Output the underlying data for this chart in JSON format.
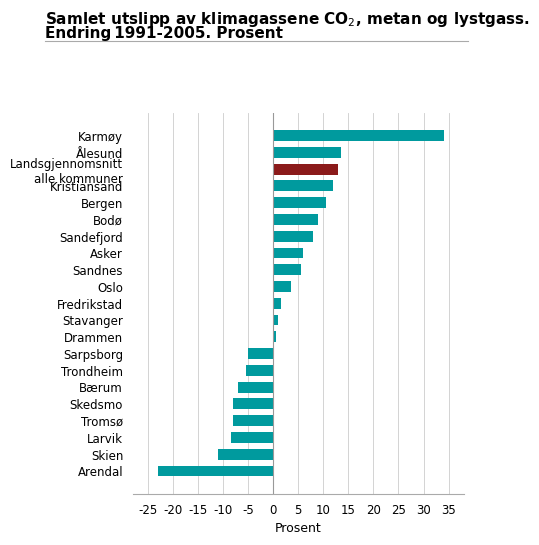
{
  "title_line1": "Samlet utslipp av klimagassene CO$_2$, metan og lystgass.",
  "title_line2": "Endring 1991-2005. Prosent",
  "xlabel": "Prosent",
  "categories": [
    "Karmøy",
    "Ålesund",
    "Landsgjennomsnitt\nalle kommuner",
    "Kristiansand",
    "Bergen",
    "Bodø",
    "Sandefjord",
    "Asker",
    "Sandnes",
    "Oslo",
    "Fredrikstad",
    "Stavanger",
    "Drammen",
    "Sarpsborg",
    "Trondheim",
    "Bærum",
    "Skedsmo",
    "Tromsø",
    "Larvik",
    "Skien",
    "Arendal"
  ],
  "values": [
    34,
    13.5,
    13,
    12,
    10.5,
    9,
    8,
    6,
    5.5,
    3.5,
    1.5,
    1,
    0.5,
    -5,
    -5.5,
    -7,
    -8,
    -8,
    -8.5,
    -11,
    -23
  ],
  "colors": [
    "#009a9e",
    "#009a9e",
    "#8b1a1a",
    "#009a9e",
    "#009a9e",
    "#009a9e",
    "#009a9e",
    "#009a9e",
    "#009a9e",
    "#009a9e",
    "#009a9e",
    "#009a9e",
    "#009a9e",
    "#009a9e",
    "#009a9e",
    "#009a9e",
    "#009a9e",
    "#009a9e",
    "#009a9e",
    "#009a9e",
    "#009a9e"
  ],
  "xlim": [
    -28,
    38
  ],
  "xticks": [
    -25,
    -20,
    -15,
    -10,
    -5,
    0,
    5,
    10,
    15,
    20,
    25,
    30,
    35
  ],
  "background_color": "#ffffff",
  "grid_color": "#cccccc",
  "title_fontsize": 11,
  "label_fontsize": 8.5,
  "tick_fontsize": 8.5,
  "bar_height": 0.65
}
